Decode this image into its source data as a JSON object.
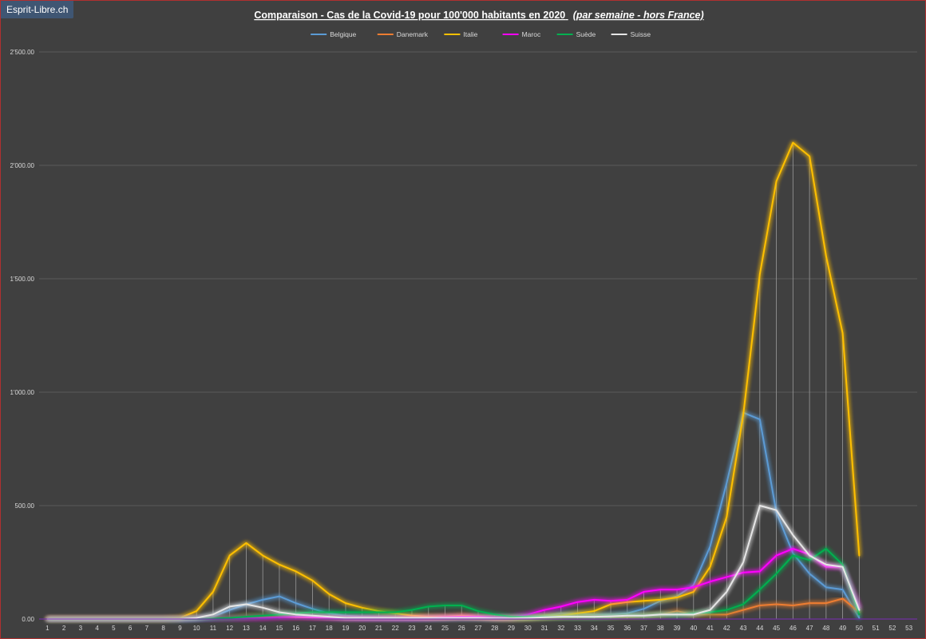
{
  "watermark": "Esprit-Libre.ch",
  "chart_data": {
    "type": "line",
    "title": "Comparaison - Cas de la Covid-19 pour 100'000  habitants en 2020",
    "subtitle": "(par semaine - hors France)",
    "xlabel": "",
    "ylabel": "",
    "ylim": [
      0,
      2500
    ],
    "yticks": [
      0,
      500,
      1000,
      1500,
      2000,
      2500
    ],
    "ytick_labels": [
      "0.00",
      "500.00",
      "1'000.00",
      "1'500.00",
      "2'000.00",
      "2'500.00"
    ],
    "grid": true,
    "legend_position": "top-center",
    "drop_lines": true,
    "categories": [
      "1",
      "2",
      "3",
      "4",
      "5",
      "6",
      "7",
      "8",
      "9",
      "10",
      "11",
      "12",
      "13",
      "14",
      "15",
      "16",
      "17",
      "18",
      "19",
      "20",
      "21",
      "22",
      "23",
      "24",
      "25",
      "26",
      "27",
      "28",
      "29",
      "30",
      "31",
      "32",
      "33",
      "34",
      "35",
      "36",
      "37",
      "38",
      "39",
      "40",
      "41",
      "42",
      "43",
      "44",
      "45",
      "46",
      "47",
      "48",
      "49",
      "50",
      "51",
      "52",
      "53"
    ],
    "series": [
      {
        "name": "Belgique",
        "color": "#5b9bd5",
        "values": [
          0,
          0,
          0,
          0,
          0,
          0,
          0,
          0,
          0,
          2,
          10,
          40,
          65,
          85,
          100,
          70,
          45,
          25,
          15,
          10,
          8,
          6,
          5,
          4,
          5,
          8,
          6,
          4,
          5,
          8,
          15,
          25,
          25,
          20,
          20,
          25,
          45,
          80,
          100,
          150,
          320,
          600,
          910,
          880,
          470,
          290,
          200,
          140,
          130,
          5,
          null,
          null,
          null
        ]
      },
      {
        "name": "Danemark",
        "color": "#ed7d31",
        "values": [
          0,
          0,
          0,
          0,
          0,
          0,
          0,
          0,
          0,
          0,
          3,
          5,
          10,
          12,
          10,
          8,
          6,
          4,
          3,
          2,
          2,
          2,
          2,
          1,
          2,
          3,
          3,
          2,
          3,
          5,
          10,
          12,
          10,
          12,
          10,
          10,
          15,
          20,
          35,
          20,
          20,
          20,
          40,
          60,
          65,
          60,
          70,
          70,
          90,
          30,
          null,
          null,
          null
        ]
      },
      {
        "name": "Italie",
        "color": "#ffc000",
        "values": [
          0,
          0,
          0,
          0,
          0,
          0,
          0,
          0,
          5,
          35,
          120,
          280,
          335,
          280,
          240,
          210,
          170,
          110,
          70,
          50,
          35,
          25,
          15,
          10,
          10,
          15,
          10,
          5,
          3,
          5,
          10,
          15,
          25,
          35,
          65,
          75,
          80,
          85,
          95,
          120,
          230,
          450,
          900,
          1520,
          1930,
          2100,
          2040,
          1600,
          1260,
          280,
          null,
          null,
          null
        ]
      },
      {
        "name": "Maroc",
        "color": "#ff00ff",
        "values": [
          0,
          0,
          0,
          0,
          0,
          0,
          0,
          0,
          0,
          0,
          1,
          2,
          3,
          5,
          8,
          10,
          8,
          6,
          4,
          3,
          3,
          3,
          3,
          5,
          8,
          10,
          10,
          8,
          8,
          20,
          40,
          55,
          75,
          85,
          80,
          85,
          120,
          130,
          130,
          140,
          165,
          185,
          205,
          210,
          280,
          310,
          285,
          230,
          230,
          50,
          null,
          null,
          null
        ]
      },
      {
        "name": "Suède",
        "color": "#00b050",
        "values": [
          0,
          0,
          0,
          0,
          0,
          0,
          0,
          0,
          0,
          0,
          2,
          5,
          10,
          15,
          20,
          25,
          30,
          30,
          30,
          30,
          30,
          30,
          40,
          55,
          60,
          60,
          35,
          20,
          10,
          10,
          10,
          10,
          10,
          10,
          12,
          15,
          15,
          20,
          20,
          25,
          30,
          40,
          65,
          130,
          200,
          280,
          260,
          310,
          240,
          20,
          null,
          null,
          null
        ]
      },
      {
        "name": "Suisse",
        "color": "#e6e6e6",
        "values": [
          0,
          0,
          0,
          0,
          0,
          0,
          0,
          0,
          0,
          5,
          20,
          55,
          65,
          50,
          30,
          20,
          15,
          10,
          5,
          5,
          5,
          5,
          5,
          5,
          5,
          5,
          5,
          3,
          3,
          5,
          8,
          10,
          10,
          10,
          12,
          15,
          15,
          20,
          20,
          20,
          40,
          120,
          250,
          500,
          480,
          370,
          280,
          240,
          230,
          40,
          null,
          null,
          null
        ]
      }
    ]
  }
}
